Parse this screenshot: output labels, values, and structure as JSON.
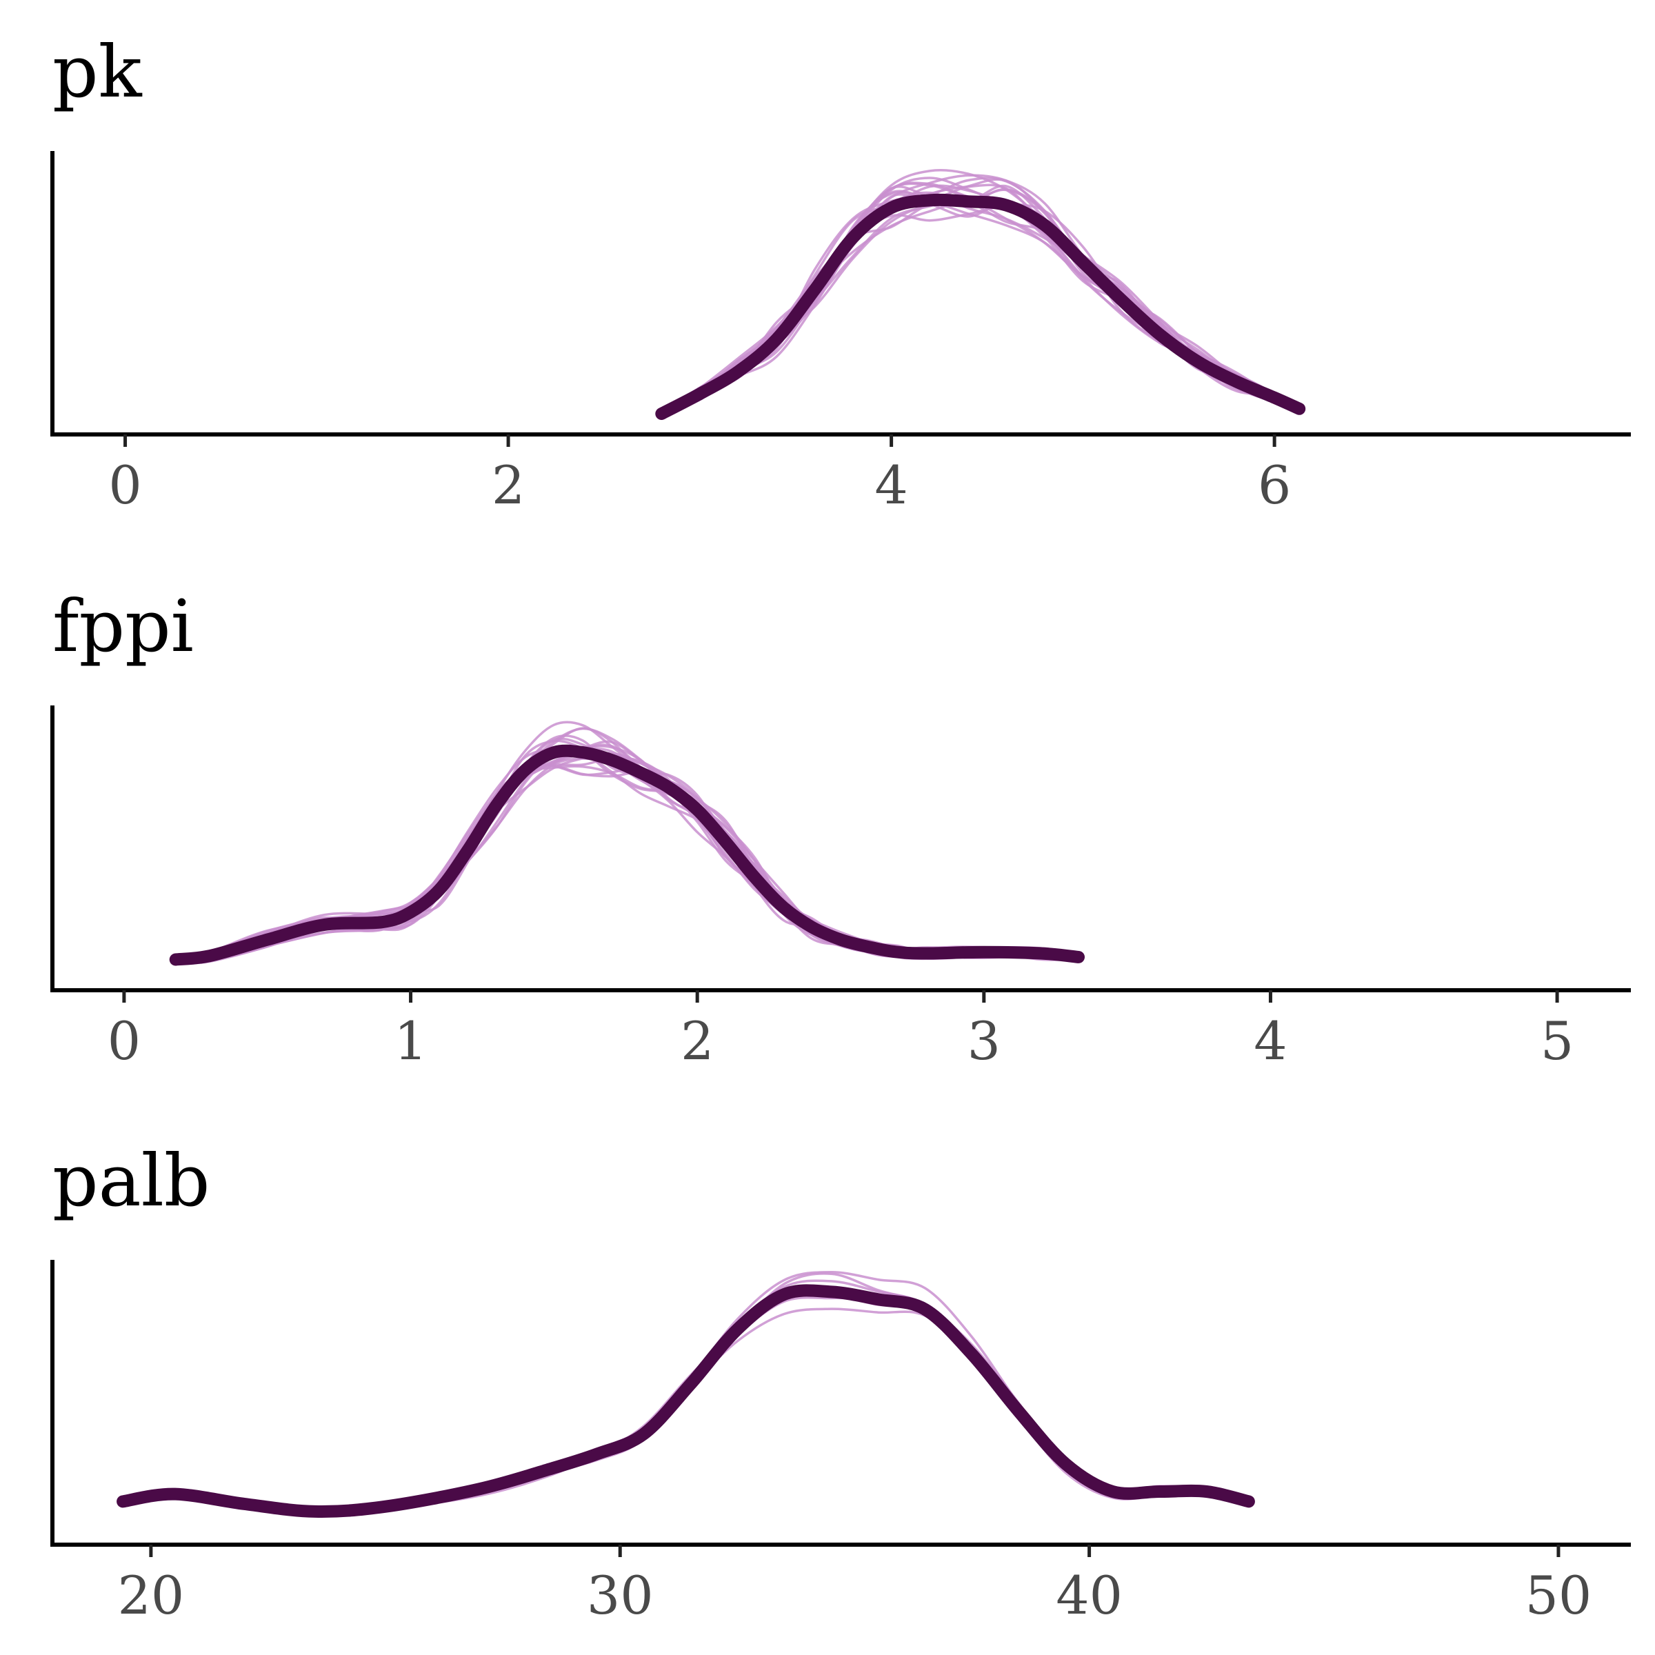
{
  "colors": {
    "overall": "#4a0a47",
    "chains": "#c98fcf",
    "axis": "#000000",
    "tick_label": "#4a4a4a"
  },
  "chart_data": [
    {
      "type": "line",
      "title": "pk",
      "xlabel": "",
      "ylabel": "",
      "xlim": [
        -0.38,
        7.85
      ],
      "ylim": [
        0,
        1.05
      ],
      "ticks": [
        0,
        2,
        4,
        6
      ],
      "tick_labels": [
        "0",
        "2",
        "4",
        "6"
      ],
      "grid": false,
      "chain_count": 20,
      "overall": {
        "x": [
          2.8,
          3.0,
          3.2,
          3.4,
          3.6,
          3.8,
          4.0,
          4.2,
          4.4,
          4.6,
          4.8,
          5.0,
          5.2,
          5.4,
          5.6,
          5.8,
          6.0,
          6.13
        ],
        "y": [
          0.0,
          0.08,
          0.17,
          0.3,
          0.5,
          0.71,
          0.83,
          0.86,
          0.855,
          0.84,
          0.76,
          0.61,
          0.46,
          0.32,
          0.21,
          0.13,
          0.065,
          0.02
        ]
      }
    },
    {
      "type": "line",
      "title": "fppi",
      "xlabel": "",
      "ylabel": "",
      "xlim": [
        -0.25,
        5.25
      ],
      "ylim": [
        0,
        1.05
      ],
      "ticks": [
        0,
        1,
        2,
        3,
        4,
        5
      ],
      "tick_labels": [
        "0",
        "1",
        "2",
        "3",
        "4",
        "5"
      ],
      "grid": false,
      "chain_count": 20,
      "overall": {
        "x": [
          0.18,
          0.3,
          0.5,
          0.7,
          0.9,
          1.0,
          1.1,
          1.2,
          1.3,
          1.4,
          1.5,
          1.6,
          1.7,
          1.8,
          1.9,
          2.0,
          2.1,
          2.2,
          2.3,
          2.4,
          2.5,
          2.6,
          2.7,
          2.8,
          3.0,
          3.2,
          3.33
        ],
        "y": [
          0.04,
          0.055,
          0.12,
          0.18,
          0.19,
          0.23,
          0.32,
          0.48,
          0.66,
          0.8,
          0.87,
          0.87,
          0.84,
          0.79,
          0.73,
          0.64,
          0.51,
          0.37,
          0.25,
          0.17,
          0.12,
          0.09,
          0.07,
          0.065,
          0.07,
          0.065,
          0.05
        ]
      }
    },
    {
      "type": "line",
      "title": "palb",
      "xlabel": "",
      "ylabel": "",
      "xlim": [
        17.9,
        51.5
      ],
      "ylim": [
        0,
        1.05
      ],
      "ticks": [
        20,
        30,
        40,
        50
      ],
      "tick_labels": [
        "20",
        "30",
        "40",
        "50"
      ],
      "grid": false,
      "chain_count": 6,
      "overall": {
        "x": [
          19.4,
          20.5,
          22.0,
          23.5,
          25.0,
          27.0,
          28.5,
          29.5,
          30.5,
          31.5,
          32.5,
          33.5,
          34.5,
          35.5,
          36.5,
          37.5,
          38.5,
          39.5,
          40.5,
          41.5,
          42.5,
          43.4
        ],
        "y": [
          0.09,
          0.12,
          0.08,
          0.05,
          0.07,
          0.14,
          0.22,
          0.28,
          0.36,
          0.56,
          0.78,
          0.92,
          0.93,
          0.9,
          0.86,
          0.68,
          0.45,
          0.24,
          0.13,
          0.13,
          0.13,
          0.09
        ]
      }
    }
  ]
}
